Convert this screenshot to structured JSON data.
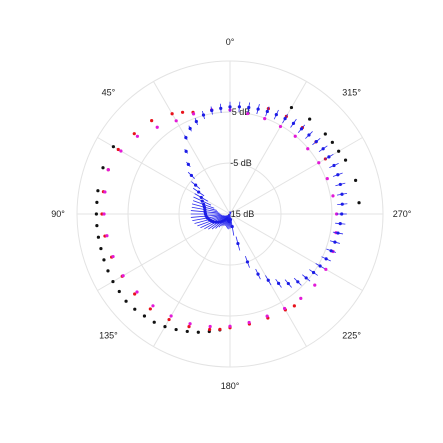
{
  "chart_data": {
    "type": "polar-scatter",
    "theta_direction": "counterclockwise",
    "theta_zero": "top",
    "angle_labels": [
      {
        "text": "0°",
        "deg": 0
      },
      {
        "text": "45°",
        "deg": 45
      },
      {
        "text": "90°",
        "deg": 90
      },
      {
        "text": "135°",
        "deg": 135
      },
      {
        "text": "180°",
        "deg": 180
      },
      {
        "text": "225°",
        "deg": 225
      },
      {
        "text": "270°",
        "deg": 270
      },
      {
        "text": "315°",
        "deg": 315
      }
    ],
    "radial_labels": [
      {
        "text": "5 dB",
        "value": 5
      },
      {
        "text": "-5 dB",
        "value": -5
      },
      {
        "text": "-15 dB",
        "value": -15
      }
    ],
    "r_range": [
      -15,
      15
    ],
    "grid_rings": [
      -15,
      -5,
      5,
      15
    ],
    "grid": true,
    "colors": {
      "black": "#111111",
      "red": "#e8121b",
      "magenta": "#e21ad8",
      "blue": "#1c1ce6",
      "errorbar": "#2a2aee",
      "grid": "#e3e3e3"
    },
    "series": [
      {
        "color_key": "black",
        "points": [
          {
            "deg": 60,
            "r": 11.4
          },
          {
            "deg": 70,
            "r": 11.5
          },
          {
            "deg": 80,
            "r": 11.3
          },
          {
            "deg": 85,
            "r": 11.2
          },
          {
            "deg": 90,
            "r": 11.2
          },
          {
            "deg": 95,
            "r": 11.2
          },
          {
            "deg": 100,
            "r": 11.2
          },
          {
            "deg": 105,
            "r": 11.2
          },
          {
            "deg": 110,
            "r": 11.3
          },
          {
            "deg": 115,
            "r": 11.4
          },
          {
            "deg": 120,
            "r": 11.5
          },
          {
            "deg": 125,
            "r": 11.5
          },
          {
            "deg": 130,
            "r": 11.6
          },
          {
            "deg": 135,
            "r": 11.4
          },
          {
            "deg": 140,
            "r": 11.1
          },
          {
            "deg": 145,
            "r": 10.9
          },
          {
            "deg": 150,
            "r": 10.5
          },
          {
            "deg": 155,
            "r": 10.0
          },
          {
            "deg": 160,
            "r": 9.5
          },
          {
            "deg": 165,
            "r": 9.0
          },
          {
            "deg": 170,
            "r": 8.4
          },
          {
            "deg": 175,
            "r": 7.8
          },
          {
            "deg": 180,
            "r": 7.1
          },
          {
            "deg": 275,
            "r": 10.4
          },
          {
            "deg": 285,
            "r": 10.5
          },
          {
            "deg": 295,
            "r": 10.0
          },
          {
            "deg": 300,
            "r": 9.6
          },
          {
            "deg": 305,
            "r": 9.5
          },
          {
            "deg": 310,
            "r": 9.4
          },
          {
            "deg": 320,
            "r": 9.3
          },
          {
            "deg": 330,
            "r": 9.1
          }
        ]
      },
      {
        "color_key": "red",
        "points": [
          {
            "deg": 10,
            "r": 5.7
          },
          {
            "deg": 20,
            "r": 6.2
          },
          {
            "deg": 25,
            "r": 7.0
          },
          {
            "deg": 30,
            "r": 7.7
          },
          {
            "deg": 40,
            "r": 8.9
          },
          {
            "deg": 50,
            "r": 9.5
          },
          {
            "deg": 60,
            "r": 10.3
          },
          {
            "deg": 70,
            "r": 10.4
          },
          {
            "deg": 80,
            "r": 10.2
          },
          {
            "deg": 90,
            "r": 10.1
          },
          {
            "deg": 100,
            "r": 9.9
          },
          {
            "deg": 110,
            "r": 9.7
          },
          {
            "deg": 120,
            "r": 9.4
          },
          {
            "deg": 130,
            "r": 9.4
          },
          {
            "deg": 140,
            "r": 9.3
          },
          {
            "deg": 150,
            "r": 8.9
          },
          {
            "deg": 160,
            "r": 8.5
          },
          {
            "deg": 170,
            "r": 8.0
          },
          {
            "deg": 175,
            "r": 7.7
          },
          {
            "deg": 180,
            "r": 7.3
          },
          {
            "deg": 190,
            "r": 6.9
          },
          {
            "deg": 200,
            "r": 6.7
          },
          {
            "deg": 210,
            "r": 6.7
          },
          {
            "deg": 215,
            "r": 7.0
          },
          {
            "deg": 300,
            "r": 6.6
          },
          {
            "deg": 310,
            "r": 7.0
          },
          {
            "deg": 320,
            "r": 7.1
          },
          {
            "deg": 330,
            "r": 7.1
          },
          {
            "deg": 340,
            "r": 7.0
          }
        ]
      },
      {
        "color_key": "magenta",
        "points": [
          {
            "deg": 0,
            "r": 5.4
          },
          {
            "deg": 10,
            "r": 5.7
          },
          {
            "deg": 20,
            "r": 5.9
          },
          {
            "deg": 30,
            "r": 6.1
          },
          {
            "deg": 40,
            "r": 7.2
          },
          {
            "deg": 50,
            "r": 8.7
          },
          {
            "deg": 60,
            "r": 9.7
          },
          {
            "deg": 70,
            "r": 10.4
          },
          {
            "deg": 80,
            "r": 9.9
          },
          {
            "deg": 90,
            "r": 9.7
          },
          {
            "deg": 100,
            "r": 9.5
          },
          {
            "deg": 110,
            "r": 9.4
          },
          {
            "deg": 120,
            "r": 9.2
          },
          {
            "deg": 130,
            "r": 8.8
          },
          {
            "deg": 140,
            "r": 8.5
          },
          {
            "deg": 150,
            "r": 8.1
          },
          {
            "deg": 160,
            "r": 7.9
          },
          {
            "deg": 170,
            "r": 7.4
          },
          {
            "deg": 180,
            "r": 7.0
          },
          {
            "deg": 190,
            "r": 6.6
          },
          {
            "deg": 200,
            "r": 6.3
          },
          {
            "deg": 210,
            "r": 6.4
          },
          {
            "deg": 220,
            "r": 6.6
          },
          {
            "deg": 230,
            "r": 6.7
          },
          {
            "deg": 240,
            "r": 6.7
          },
          {
            "deg": 250,
            "r": 6.5
          },
          {
            "deg": 260,
            "r": 6.1
          },
          {
            "deg": 270,
            "r": 5.9
          },
          {
            "deg": 280,
            "r": 5.5
          },
          {
            "deg": 290,
            "r": 5.3
          },
          {
            "deg": 300,
            "r": 5.1
          },
          {
            "deg": 310,
            "r": 4.9
          },
          {
            "deg": 320,
            "r": 4.9
          },
          {
            "deg": 330,
            "r": 4.8
          },
          {
            "deg": 340,
            "r": 4.9
          },
          {
            "deg": 350,
            "r": 5.0
          }
        ]
      },
      {
        "color_key": "blue",
        "points": [
          {
            "deg": 0,
            "r": 6.0,
            "err": 1.0
          },
          {
            "deg": 5,
            "r": 5.8,
            "err": 0.9
          },
          {
            "deg": 10,
            "r": 5.6,
            "err": 0.8
          },
          {
            "deg": 15,
            "r": 5.1,
            "err": 0.8
          },
          {
            "deg": 20,
            "r": 4.3,
            "err": 0.7
          },
          {
            "deg": 25,
            "r": 3.5,
            "err": 0.6
          },
          {
            "deg": 30,
            "r": 2.3,
            "err": 0.5
          },
          {
            "deg": 35,
            "r": 0.0,
            "err": 0.5
          },
          {
            "deg": 40,
            "r": -2.3,
            "err": 0.6
          },
          {
            "deg": 45,
            "r": -4.3,
            "err": 0.9
          },
          {
            "deg": 50,
            "r": -6.2,
            "err": 1.1
          },
          {
            "deg": 55,
            "r": -7.5,
            "err": 1.3
          },
          {
            "deg": 60,
            "r": -8.5,
            "err": 1.5
          },
          {
            "deg": 65,
            "r": -9.0,
            "err": 1.9
          },
          {
            "deg": 70,
            "r": -9.5,
            "err": 2.2
          },
          {
            "deg": 75,
            "r": -9.8,
            "err": 2.5
          },
          {
            "deg": 80,
            "r": -10.0,
            "err": 2.6
          },
          {
            "deg": 85,
            "r": -10.1,
            "err": 2.8
          },
          {
            "deg": 90,
            "r": -10.2,
            "err": 2.9
          },
          {
            "deg": 95,
            "r": -10.3,
            "err": 3.0
          },
          {
            "deg": 100,
            "r": -10.5,
            "err": 3.0
          },
          {
            "deg": 105,
            "r": -10.8,
            "err": 3.0
          },
          {
            "deg": 110,
            "r": -11.1,
            "err": 2.9
          },
          {
            "deg": 115,
            "r": -11.4,
            "err": 2.8
          },
          {
            "deg": 120,
            "r": -11.8,
            "err": 2.6
          },
          {
            "deg": 125,
            "r": -12.2,
            "err": 2.4
          },
          {
            "deg": 130,
            "r": -12.6,
            "err": 2.2
          },
          {
            "deg": 135,
            "r": -13.0,
            "err": 2.0
          },
          {
            "deg": 140,
            "r": -13.4,
            "err": 1.8
          },
          {
            "deg": 145,
            "r": -13.7,
            "err": 1.6
          },
          {
            "deg": 150,
            "r": -13.9,
            "err": 1.5
          },
          {
            "deg": 155,
            "r": -14.0,
            "err": 1.5
          },
          {
            "deg": 160,
            "r": -14.0,
            "err": 1.5
          },
          {
            "deg": 165,
            "r": -13.8,
            "err": 1.5
          },
          {
            "deg": 170,
            "r": -13.6,
            "err": 1.5
          },
          {
            "deg": 175,
            "r": -13.5,
            "err": 1.5
          },
          {
            "deg": 180,
            "r": -13.6,
            "err": 1.5
          },
          {
            "deg": 185,
            "r": -13.9,
            "err": 1.6
          },
          {
            "deg": 190,
            "r": -12.5,
            "err": 1.8
          },
          {
            "deg": 195,
            "r": -9.0,
            "err": 1.4
          },
          {
            "deg": 200,
            "r": -5.0,
            "err": 1.2
          },
          {
            "deg": 205,
            "r": -2.0,
            "err": 1.1
          },
          {
            "deg": 210,
            "r": 0.0,
            "err": 1.1
          },
          {
            "deg": 215,
            "r": 1.6,
            "err": 1.0
          },
          {
            "deg": 220,
            "r": 2.8,
            "err": 1.0
          },
          {
            "deg": 225,
            "r": 3.8,
            "err": 1.0
          },
          {
            "deg": 230,
            "r": 4.5,
            "err": 1.0
          },
          {
            "deg": 235,
            "r": 5.0,
            "err": 1.0
          },
          {
            "deg": 240,
            "r": 5.4,
            "err": 1.0
          },
          {
            "deg": 245,
            "r": 5.8,
            "err": 1.0
          },
          {
            "deg": 250,
            "r": 6.1,
            "err": 1.0
          },
          {
            "deg": 255,
            "r": 6.3,
            "err": 1.0
          },
          {
            "deg": 260,
            "r": 6.5,
            "err": 1.0
          },
          {
            "deg": 265,
            "r": 6.7,
            "err": 1.0
          },
          {
            "deg": 270,
            "r": 6.9,
            "err": 1.0
          },
          {
            "deg": 275,
            "r": 7.1,
            "err": 1.0
          },
          {
            "deg": 280,
            "r": 7.3,
            "err": 1.0
          },
          {
            "deg": 285,
            "r": 7.4,
            "err": 1.0
          },
          {
            "deg": 290,
            "r": 7.5,
            "err": 1.0
          },
          {
            "deg": 295,
            "r": 7.5,
            "err": 1.0
          },
          {
            "deg": 300,
            "r": 7.4,
            "err": 1.0
          },
          {
            "deg": 305,
            "r": 7.3,
            "err": 1.0
          },
          {
            "deg": 310,
            "r": 7.1,
            "err": 1.0
          },
          {
            "deg": 315,
            "r": 6.9,
            "err": 1.0
          },
          {
            "deg": 320,
            "r": 6.8,
            "err": 1.0
          },
          {
            "deg": 325,
            "r": 6.7,
            "err": 1.0
          },
          {
            "deg": 330,
            "r": 6.6,
            "err": 1.0
          },
          {
            "deg": 335,
            "r": 6.5,
            "err": 1.0
          },
          {
            "deg": 340,
            "r": 6.4,
            "err": 1.0
          },
          {
            "deg": 345,
            "r": 6.3,
            "err": 1.0
          },
          {
            "deg": 350,
            "r": 6.2,
            "err": 1.0
          },
          {
            "deg": 355,
            "r": 6.1,
            "err": 1.0
          }
        ]
      }
    ]
  }
}
